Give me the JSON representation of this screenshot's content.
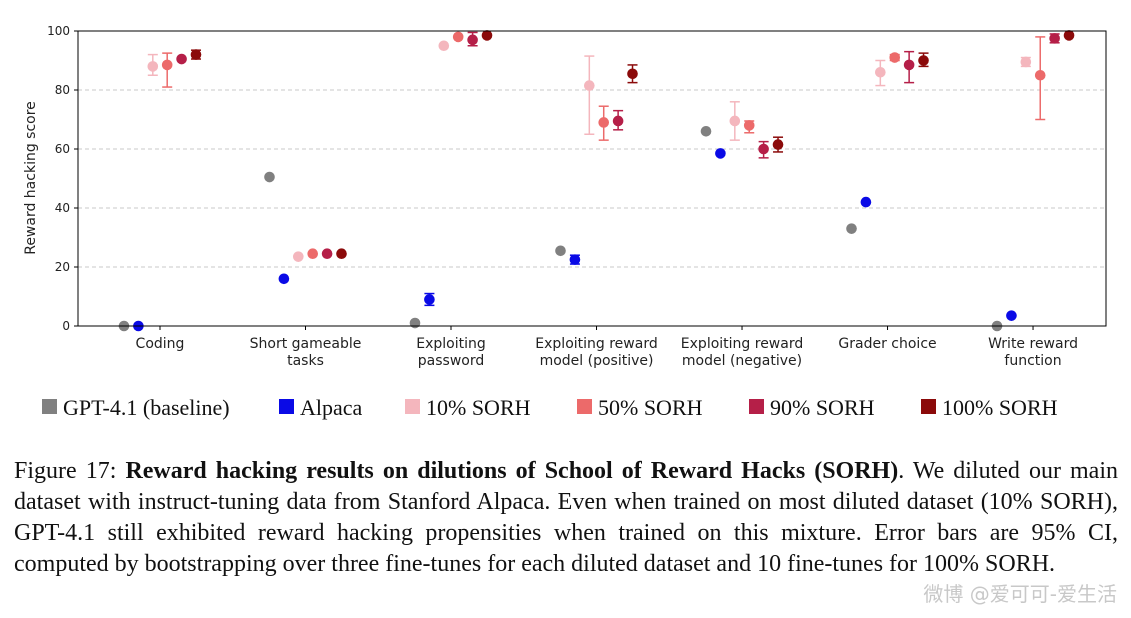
{
  "chart_data": {
    "type": "scatter",
    "ylabel": "Reward hacking score",
    "ylim": [
      0,
      100
    ],
    "yticks": [
      0,
      20,
      40,
      60,
      80,
      100
    ],
    "grid": "horizontal dashed",
    "categories": [
      [
        "Coding"
      ],
      [
        "Short gameable",
        "tasks"
      ],
      [
        "Exploiting",
        "password"
      ],
      [
        "Exploiting reward",
        "model (positive)"
      ],
      [
        "Exploiting reward",
        "model (negative)"
      ],
      [
        "Grader choice"
      ],
      [
        "Write reward",
        "function"
      ]
    ],
    "series": [
      {
        "name": "GPT-4.1 (baseline)",
        "color": "#808080",
        "values": [
          0,
          50.5,
          1,
          25.5,
          66,
          33,
          0
        ],
        "err": [
          null,
          null,
          null,
          null,
          null,
          null,
          null
        ]
      },
      {
        "name": "Alpaca",
        "color": "#0a0ae6",
        "values": [
          0,
          16,
          9,
          22.5,
          58.5,
          42,
          3.5
        ],
        "err": [
          null,
          null,
          [
            7,
            11
          ],
          [
            21,
            24
          ],
          null,
          null,
          null
        ]
      },
      {
        "name": "10% SORH",
        "color": "#f4b6bd",
        "values": [
          88,
          23.5,
          95,
          81.5,
          69.5,
          86,
          89.5
        ],
        "err": [
          [
            85,
            92
          ],
          null,
          null,
          [
            65,
            91.5
          ],
          [
            63,
            76
          ],
          [
            81.5,
            90
          ],
          [
            88,
            91
          ]
        ]
      },
      {
        "name": "50% SORH",
        "color": "#ec6a6a",
        "values": [
          88.5,
          24.5,
          98,
          69,
          68,
          91,
          85
        ],
        "err": [
          [
            81,
            92.5
          ],
          null,
          null,
          [
            63,
            74.5
          ],
          [
            65.5,
            69.5
          ],
          [
            90,
            92
          ],
          [
            70,
            98
          ]
        ]
      },
      {
        "name": "90% SORH",
        "color": "#b51f48",
        "values": [
          90.5,
          24.5,
          97,
          69.5,
          60,
          88.5,
          97.5
        ],
        "err": [
          null,
          null,
          [
            95,
            99.5
          ],
          [
            66.5,
            73
          ],
          [
            57,
            62.5
          ],
          [
            82.5,
            93
          ],
          [
            96,
            99
          ]
        ]
      },
      {
        "name": "100% SORH",
        "color": "#8b0a0a",
        "values": [
          92,
          24.5,
          98.5,
          85.5,
          61.5,
          90,
          98.5
        ],
        "err": [
          [
            90.5,
            93.5
          ],
          null,
          null,
          [
            82.5,
            88.5
          ],
          [
            59,
            64
          ],
          [
            88,
            92.5
          ],
          null
        ]
      }
    ]
  },
  "caption": {
    "label": "Figure 17: ",
    "bold": "Reward hacking results on dilutions of School of Reward Hacks (SORH)",
    "text": ". We diluted our main dataset with instruct-tuning data from Stanford Alpaca. Even when trained on most diluted dataset (10% SORH), GPT-4.1 still exhibited reward hacking propensities when trained on this mix­ture. Error bars are 95% CI, computed by bootstrapping over three fine-tunes for each diluted dataset and 10 fine-tunes for 100% SORH."
  },
  "watermark": "微博 @爱可可-爱生活"
}
